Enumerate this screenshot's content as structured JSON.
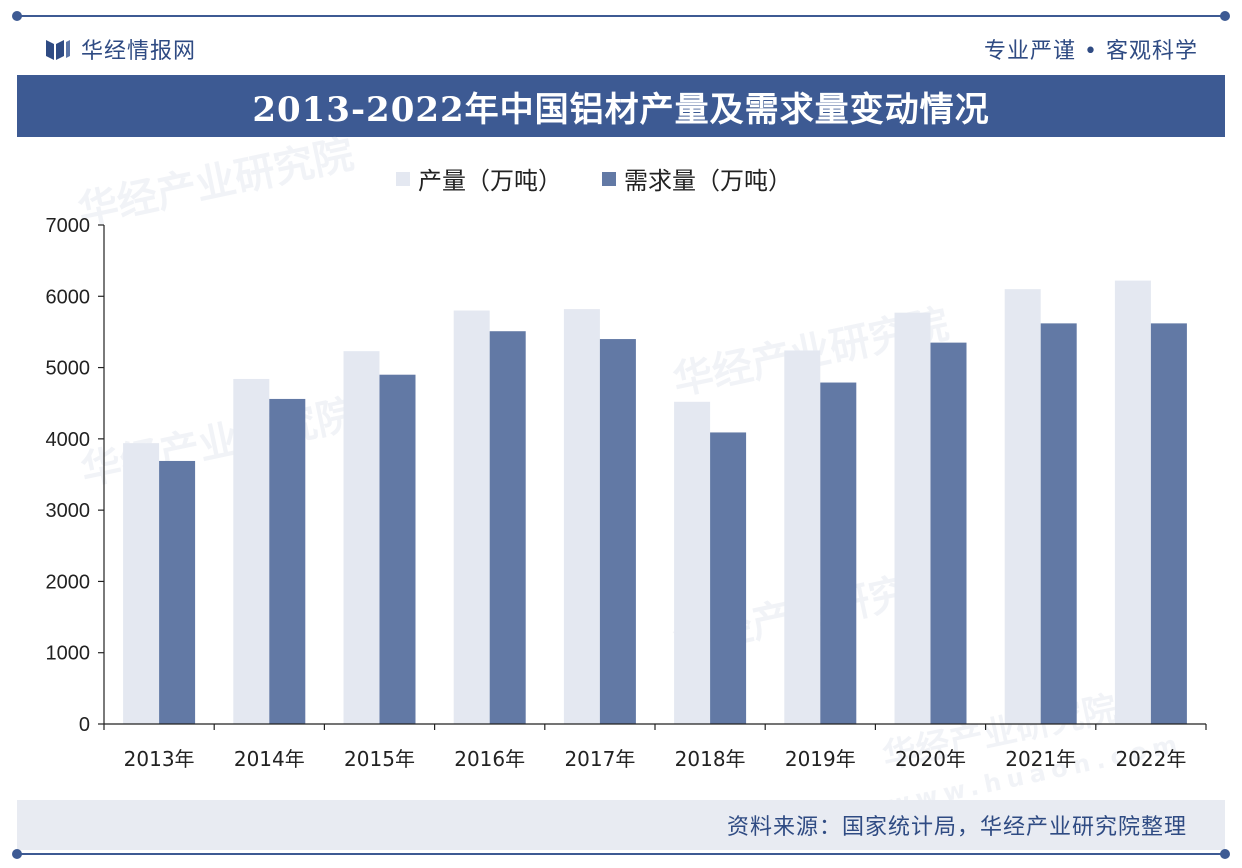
{
  "header": {
    "brand": "华经情报网",
    "slogan": "专业严谨 • 客观科学"
  },
  "watermark": {
    "text": "华经产业研究院",
    "url": "www.huaon.com"
  },
  "footer": {
    "source": "资料来源：国家统计局，华经产业研究院整理"
  },
  "colors": {
    "brand": "#3d5a93",
    "production": "#e4e8f1",
    "demand": "#6279a5"
  },
  "chart_data": {
    "type": "bar",
    "title": "2013-2022年中国铝材产量及需求量变动情况",
    "categories": [
      "2013年",
      "2014年",
      "2015年",
      "2016年",
      "2017年",
      "2018年",
      "2019年",
      "2020年",
      "2021年",
      "2022年"
    ],
    "series": [
      {
        "name": "产量（万吨）",
        "values": [
          3940,
          4840,
          5230,
          5800,
          5820,
          4520,
          5240,
          5770,
          6100,
          6220
        ]
      },
      {
        "name": "需求量（万吨）",
        "values": [
          3690,
          4560,
          4900,
          5510,
          5400,
          4090,
          4790,
          5350,
          5620,
          5620
        ]
      }
    ],
    "ylim": [
      0,
      7000
    ],
    "yticks": [
      0,
      1000,
      2000,
      3000,
      4000,
      5000,
      6000,
      7000
    ],
    "legend_position": "top-center",
    "grid": false
  }
}
